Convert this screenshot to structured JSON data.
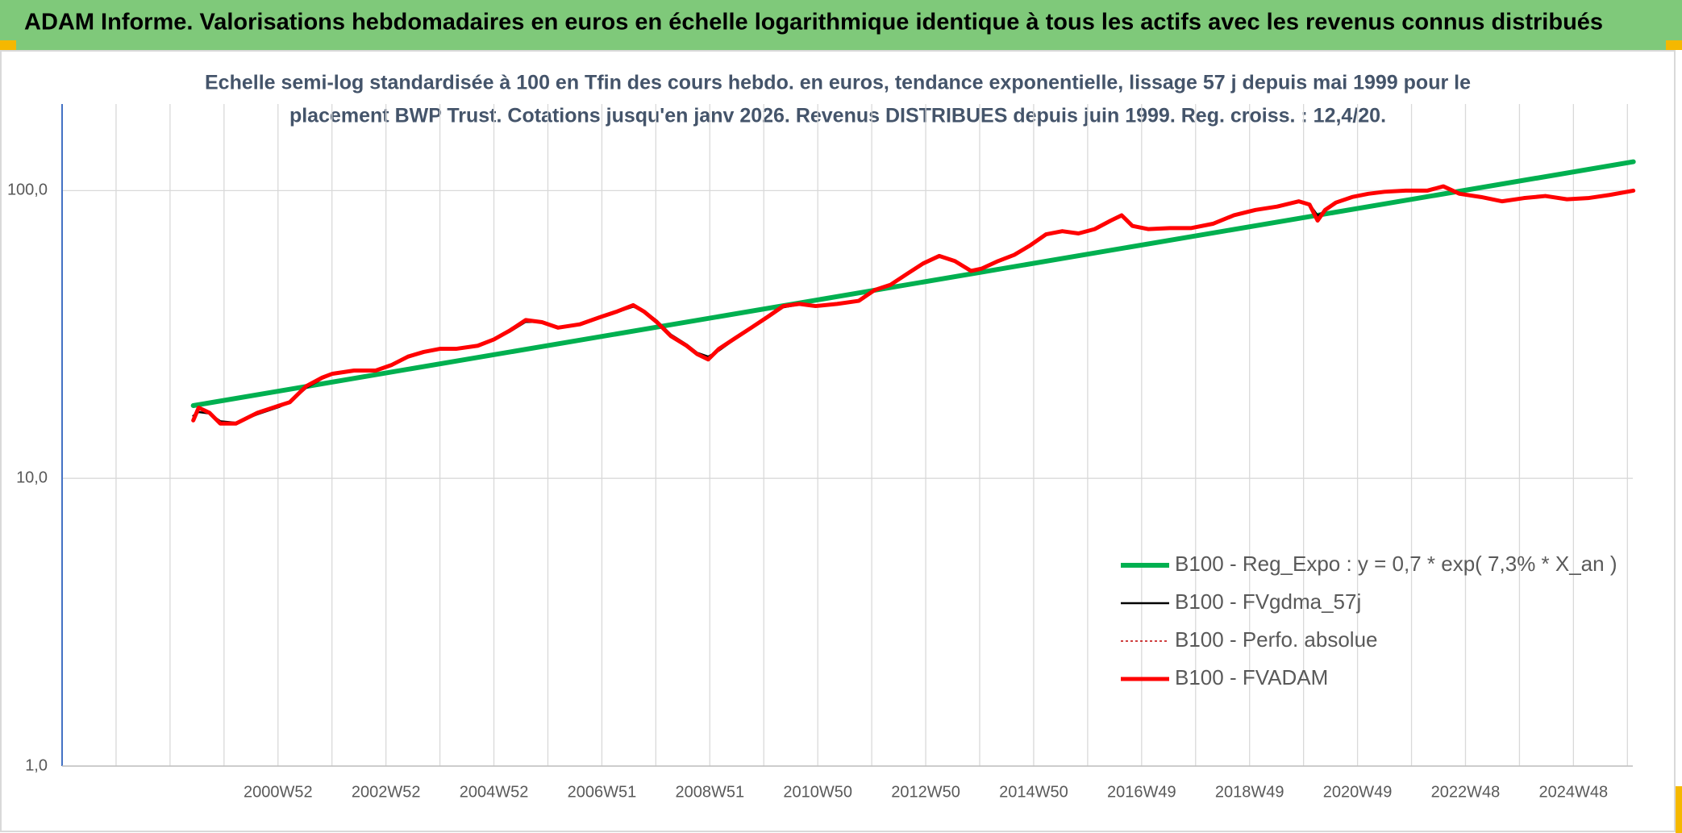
{
  "chart_data": {
    "type": "line",
    "title": "ADAM Informe. Valorisations hebdomadaires en euros en échelle logarithmique identique à tous les actifs avec les revenus connus distribués",
    "subtitle": [
      "Echelle semi-log standardisée à 100 en Tfin des cours hebdo. en euros, tendance exponentielle, lissage 57 j depuis mai 1999 pour le",
      "placement BWP Trust. Cotations jusqu'en janv 2026. Revenus DISTRIBUES depuis juin 1999. Reg. croiss. : 12,4/20."
    ],
    "log_y": true,
    "grid": true,
    "legend": "right",
    "ylim": [
      1,
      200
    ],
    "yticks": [
      {
        "value": 1,
        "label": "1,0"
      },
      {
        "value": 10,
        "label": "10,0"
      },
      {
        "value": 100,
        "label": "100,0"
      }
    ],
    "xlim": [
      1997,
      2026.1
    ],
    "xticks": [
      {
        "value": 2001,
        "label": "2000W52"
      },
      {
        "value": 2003,
        "label": "2002W52"
      },
      {
        "value": 2005,
        "label": "2004W52"
      },
      {
        "value": 2007,
        "label": "2006W51"
      },
      {
        "value": 2009,
        "label": "2008W51"
      },
      {
        "value": 2011,
        "label": "2010W50"
      },
      {
        "value": 2013,
        "label": "2012W50"
      },
      {
        "value": 2015,
        "label": "2014W50"
      },
      {
        "value": 2017,
        "label": "2016W49"
      },
      {
        "value": 2019,
        "label": "2018W49"
      },
      {
        "value": 2021,
        "label": "2020W49"
      },
      {
        "value": 2023,
        "label": "2022W48"
      },
      {
        "value": 2025,
        "label": "2024W48"
      }
    ],
    "xminor": [
      1998,
      1999,
      2000,
      2002,
      2004,
      2006,
      2008,
      2010,
      2012,
      2014,
      2016,
      2018,
      2020,
      2022,
      2024,
      2026
    ],
    "x": [
      1999.43,
      1999.53,
      1999.73,
      1999.93,
      2000.22,
      2000.62,
      2001.02,
      2001.22,
      2001.52,
      2001.82,
      2002.01,
      2002.41,
      2002.81,
      2003.11,
      2003.41,
      2003.7,
      2004.0,
      2004.3,
      2004.7,
      2005.0,
      2005.29,
      2005.59,
      2005.89,
      2006.19,
      2006.59,
      2006.98,
      2007.28,
      2007.58,
      2007.78,
      2008.02,
      2008.28,
      2008.57,
      2008.77,
      2008.97,
      2009.17,
      2009.47,
      2009.77,
      2010.07,
      2010.36,
      2010.66,
      2010.96,
      2011.36,
      2011.76,
      2012.05,
      2012.35,
      2012.65,
      2012.95,
      2013.25,
      2013.54,
      2013.84,
      2014.04,
      2014.34,
      2014.64,
      2014.94,
      2015.23,
      2015.53,
      2015.83,
      2016.13,
      2016.43,
      2016.63,
      2016.83,
      2017.12,
      2017.52,
      2017.92,
      2018.32,
      2018.71,
      2019.11,
      2019.51,
      2019.91,
      2020.11,
      2020.26,
      2020.4,
      2020.6,
      2020.9,
      2021.2,
      2021.5,
      2021.89,
      2022.29,
      2022.59,
      2022.89,
      2023.29,
      2023.68,
      2024.08,
      2024.48,
      2024.88,
      2025.27,
      2025.67,
      2026.11
    ],
    "series": [
      {
        "name": "B100 - Reg_Expo : y = 0,7 * exp( 7,3% *  X_an )",
        "color": "#00b050",
        "width": 6,
        "x": [
          1999.43,
          2026.11
        ],
        "values": [
          17.9,
          126
        ]
      },
      {
        "name": "B100 - FVgdma_57j",
        "color": "#000000",
        "width": 2.5,
        "values": [
          16.5,
          17.0,
          16.8,
          15.8,
          15.6,
          16.7,
          17.7,
          18.4,
          20.6,
          22.2,
          23.0,
          23.6,
          23.8,
          24.7,
          26.3,
          27.4,
          28.1,
          28.3,
          28.9,
          30.3,
          32.3,
          35.0,
          34.9,
          33.6,
          34.3,
          36.2,
          37.8,
          39.5,
          38.2,
          35.3,
          31.6,
          29.2,
          27.3,
          26.5,
          27.8,
          30.5,
          33.2,
          36.1,
          39.3,
          40.2,
          39.8,
          40.3,
          41.3,
          44.8,
          47.0,
          51.0,
          55.4,
          58.8,
          57.0,
          53.0,
          53.6,
          56.7,
          59.6,
          64.2,
          70.0,
          72.0,
          71.2,
          73.3,
          78.3,
          81.4,
          76.0,
          73.7,
          74.1,
          74.2,
          76.6,
          81.8,
          85.5,
          87.8,
          91.5,
          89.8,
          82.0,
          85.0,
          90.5,
          94.8,
          97.3,
          99.0,
          99.9,
          100.1,
          103.0,
          97.9,
          95.2,
          92.0,
          94.0,
          95.6,
          93.5,
          94.1,
          96.4,
          99.6
        ]
      },
      {
        "name": "B100 - Perfo. absolue",
        "color": "#c00000",
        "width": 1.5,
        "dash": true,
        "values": [
          15.9,
          17.6,
          16.9,
          15.5,
          15.5,
          16.9,
          17.9,
          18.4,
          20.9,
          22.4,
          23.1,
          23.7,
          23.7,
          24.8,
          26.5,
          27.5,
          28.2,
          28.2,
          28.9,
          30.4,
          32.6,
          35.5,
          34.9,
          33.4,
          34.3,
          36.4,
          38.0,
          40.0,
          38.0,
          34.9,
          31.2,
          28.9,
          27.0,
          25.9,
          28.2,
          30.7,
          33.4,
          36.4,
          39.7,
          40.4,
          39.7,
          40.4,
          41.4,
          45.1,
          47.1,
          51.3,
          55.8,
          59.3,
          56.9,
          52.6,
          53.6,
          56.9,
          59.8,
          64.6,
          70.5,
          72.3,
          71.0,
          73.5,
          78.7,
          82.1,
          75.4,
          73.5,
          74.1,
          74.1,
          76.7,
          82.1,
          85.7,
          88.0,
          91.8,
          89.5,
          78.7,
          85.7,
          90.9,
          95.0,
          97.5,
          99.1,
          100,
          100,
          103.5,
          97.5,
          95.0,
          91.8,
          94.2,
          95.8,
          93.3,
          94.2,
          96.6,
          100
        ]
      },
      {
        "name": "B100 - FVADAM",
        "color": "#ff0000",
        "width": 5,
        "values": [
          15.9,
          17.6,
          16.9,
          15.5,
          15.5,
          16.9,
          17.9,
          18.4,
          20.9,
          22.4,
          23.1,
          23.7,
          23.7,
          24.8,
          26.5,
          27.5,
          28.2,
          28.2,
          28.9,
          30.4,
          32.6,
          35.5,
          34.9,
          33.4,
          34.3,
          36.4,
          38.0,
          40.0,
          38.0,
          34.9,
          31.2,
          28.9,
          27.0,
          25.9,
          28.2,
          30.7,
          33.4,
          36.4,
          39.7,
          40.4,
          39.7,
          40.4,
          41.4,
          45.1,
          47.1,
          51.3,
          55.8,
          59.3,
          56.9,
          52.6,
          53.6,
          56.9,
          59.8,
          64.6,
          70.5,
          72.3,
          71.0,
          73.5,
          78.7,
          82.1,
          75.4,
          73.5,
          74.1,
          74.1,
          76.7,
          82.1,
          85.7,
          88.0,
          91.8,
          89.5,
          78.7,
          85.7,
          90.9,
          95.0,
          97.5,
          99.1,
          100,
          100,
          103.5,
          97.5,
          95.0,
          91.8,
          94.2,
          95.8,
          93.3,
          94.2,
          96.6,
          100
        ]
      }
    ]
  }
}
